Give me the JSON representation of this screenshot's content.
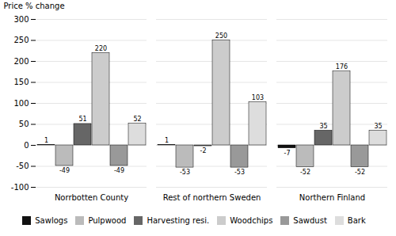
{
  "chart_data": {
    "type": "bar",
    "categories": [
      "Norrbotten County",
      "Rest of northern Sweden",
      "Northern Finland"
    ],
    "series": [
      {
        "name": "Sawlogs",
        "color": "#111111",
        "values": [
          1,
          1,
          -7
        ]
      },
      {
        "name": "Pulpwood",
        "color": "#bbbbbb",
        "values": [
          -49,
          -53,
          -52
        ]
      },
      {
        "name": "Harvesting resi.",
        "color": "#666666",
        "values": [
          51,
          -2,
          35
        ]
      },
      {
        "name": "Woodchips",
        "color": "#cccccc",
        "values": [
          220,
          250,
          176
        ]
      },
      {
        "name": "Sawdust",
        "color": "#999999",
        "values": [
          -49,
          -53,
          -52
        ]
      },
      {
        "name": "Bark",
        "color": "#dddddd",
        "values": [
          52,
          103,
          35
        ]
      }
    ],
    "ylabel": "Price % change",
    "ylim": [
      -100,
      300
    ],
    "yticks": [
      -100,
      -50,
      0,
      50,
      100,
      150,
      200,
      250,
      300
    ],
    "grid": true,
    "data_labels": true,
    "legend": "bottom"
  }
}
